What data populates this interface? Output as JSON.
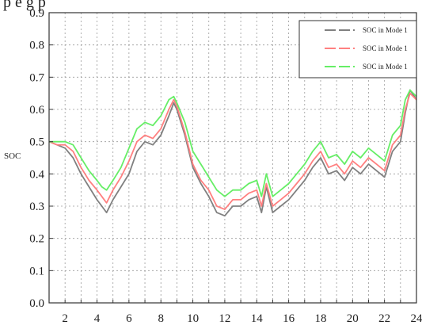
{
  "chart_data": {
    "type": "line",
    "title": "",
    "top_clipped_text": "p     e             g      p",
    "xlabel": "",
    "ylabel": "SOC",
    "xlim": [
      1,
      24
    ],
    "ylim": [
      0,
      0.9
    ],
    "x_ticks": [
      2,
      4,
      6,
      8,
      10,
      12,
      14,
      16,
      18,
      20,
      22,
      24
    ],
    "y_ticks": [
      0.0,
      0.1,
      0.2,
      0.3,
      0.4,
      0.5,
      0.6,
      0.7,
      0.8,
      0.9
    ],
    "x_tick_labels": [
      "2",
      "4",
      "6",
      "8",
      "10",
      "12",
      "14",
      "16",
      "18",
      "20",
      "22",
      "24"
    ],
    "y_tick_labels": [
      "0.0",
      "0.1",
      "0.2",
      "0.3",
      "0.4",
      "0.5",
      "0.6",
      "0.7",
      "0.8",
      "0.9"
    ],
    "grid": true,
    "legend_position": "top-right",
    "x": [
      1.0,
      1.5,
      2.0,
      2.5,
      3.0,
      3.5,
      4.0,
      4.3,
      4.6,
      5.0,
      5.5,
      6.0,
      6.5,
      7.0,
      7.5,
      8.0,
      8.5,
      8.8,
      9.0,
      9.5,
      10.0,
      10.5,
      11.0,
      11.5,
      12.0,
      12.5,
      13.0,
      13.5,
      14.0,
      14.3,
      14.6,
      15.0,
      15.5,
      16.0,
      16.5,
      17.0,
      17.5,
      18.0,
      18.5,
      19.0,
      19.5,
      20.0,
      20.5,
      21.0,
      21.5,
      22.0,
      22.5,
      23.0,
      23.3,
      23.6,
      24.0
    ],
    "series": [
      {
        "name": "SOC in Mode 1",
        "color": "#808080",
        "dash": "dashed",
        "values": [
          0.5,
          0.49,
          0.48,
          0.45,
          0.4,
          0.36,
          0.32,
          0.3,
          0.28,
          0.32,
          0.36,
          0.4,
          0.47,
          0.5,
          0.49,
          0.52,
          0.58,
          0.62,
          0.6,
          0.52,
          0.42,
          0.37,
          0.33,
          0.28,
          0.27,
          0.3,
          0.3,
          0.32,
          0.33,
          0.28,
          0.36,
          0.28,
          0.3,
          0.32,
          0.35,
          0.38,
          0.42,
          0.45,
          0.4,
          0.41,
          0.38,
          0.42,
          0.4,
          0.43,
          0.41,
          0.39,
          0.47,
          0.5,
          0.59,
          0.66,
          0.63
        ]
      },
      {
        "name": "SOC in Mode 1",
        "color": "#ff8080",
        "dash": "dashed",
        "values": [
          0.5,
          0.49,
          0.49,
          0.47,
          0.42,
          0.38,
          0.35,
          0.33,
          0.31,
          0.35,
          0.39,
          0.44,
          0.5,
          0.52,
          0.51,
          0.54,
          0.6,
          0.63,
          0.61,
          0.53,
          0.43,
          0.38,
          0.35,
          0.3,
          0.29,
          0.32,
          0.32,
          0.34,
          0.35,
          0.3,
          0.37,
          0.3,
          0.32,
          0.34,
          0.37,
          0.4,
          0.44,
          0.47,
          0.42,
          0.43,
          0.4,
          0.44,
          0.42,
          0.45,
          0.43,
          0.41,
          0.49,
          0.52,
          0.6,
          0.65,
          0.63
        ]
      },
      {
        "name": "SOC in Mode 1",
        "color": "#66ee66",
        "dash": "dashed",
        "values": [
          0.5,
          0.5,
          0.5,
          0.49,
          0.45,
          0.41,
          0.38,
          0.36,
          0.35,
          0.38,
          0.42,
          0.48,
          0.54,
          0.56,
          0.55,
          0.58,
          0.63,
          0.64,
          0.62,
          0.56,
          0.47,
          0.43,
          0.39,
          0.35,
          0.33,
          0.35,
          0.35,
          0.37,
          0.38,
          0.33,
          0.4,
          0.33,
          0.35,
          0.37,
          0.4,
          0.43,
          0.47,
          0.5,
          0.45,
          0.46,
          0.43,
          0.47,
          0.45,
          0.48,
          0.46,
          0.44,
          0.52,
          0.55,
          0.63,
          0.66,
          0.64
        ]
      }
    ],
    "legend": {
      "items": [
        "SOC in Mode 1",
        "SOC in Mode 1",
        "SOC in Mode 1"
      ]
    }
  }
}
